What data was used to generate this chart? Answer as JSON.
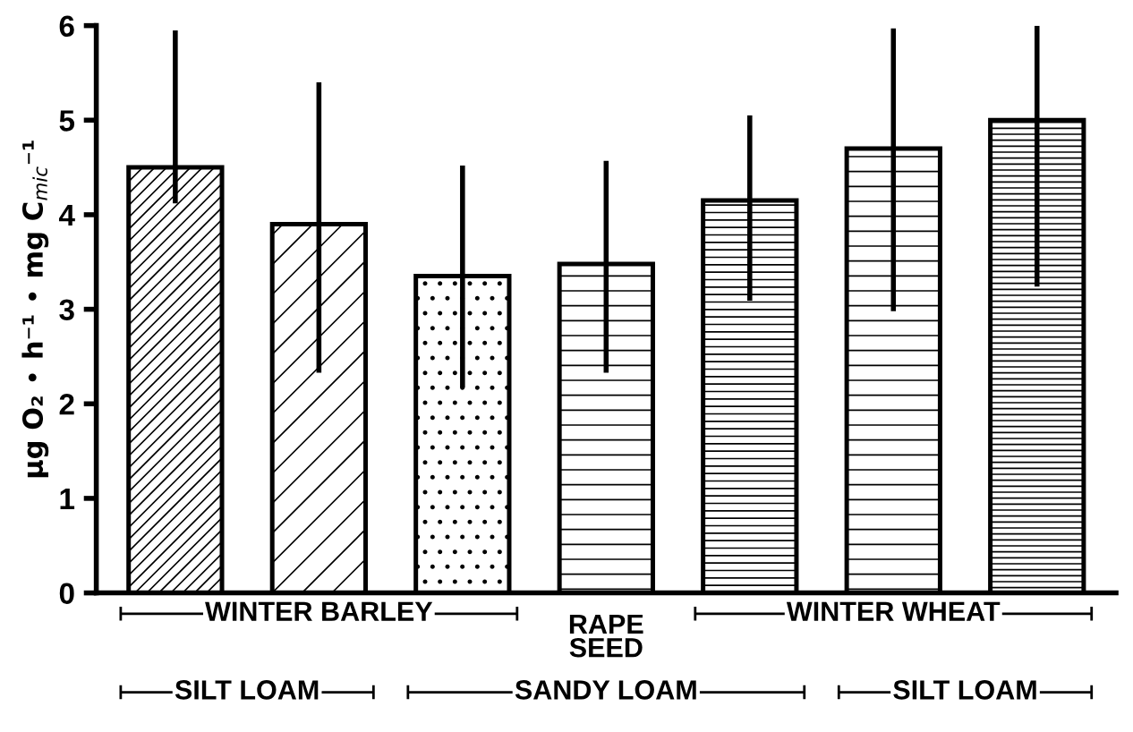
{
  "chart_data": {
    "type": "bar",
    "ylabel": "µg O₂ • h⁻¹ • mg C$_{mic}$⁻¹",
    "categories": [
      null,
      null,
      null,
      null,
      null,
      null,
      null
    ],
    "values": [
      4.5,
      3.9,
      3.35,
      3.48,
      4.15,
      4.7,
      5.0
    ],
    "errors": [
      [
        4.12,
        5.95
      ],
      [
        2.33,
        5.4
      ],
      [
        2.17,
        4.52
      ],
      [
        2.33,
        4.57
      ],
      [
        3.09,
        5.05
      ],
      [
        2.98,
        5.97
      ],
      [
        3.24,
        6.0
      ]
    ],
    "ylim": [
      0,
      6
    ],
    "yticks": [
      0,
      1,
      2,
      3,
      4,
      5,
      6
    ],
    "color": "#000000",
    "grid": false,
    "annotations": [
      "WINTER BARLEY",
      "RAPE\nSEED",
      "WINTER WHEAT",
      "SILT LOAM",
      "SANDY LOAM",
      "SILT LOAM"
    ]
  }
}
